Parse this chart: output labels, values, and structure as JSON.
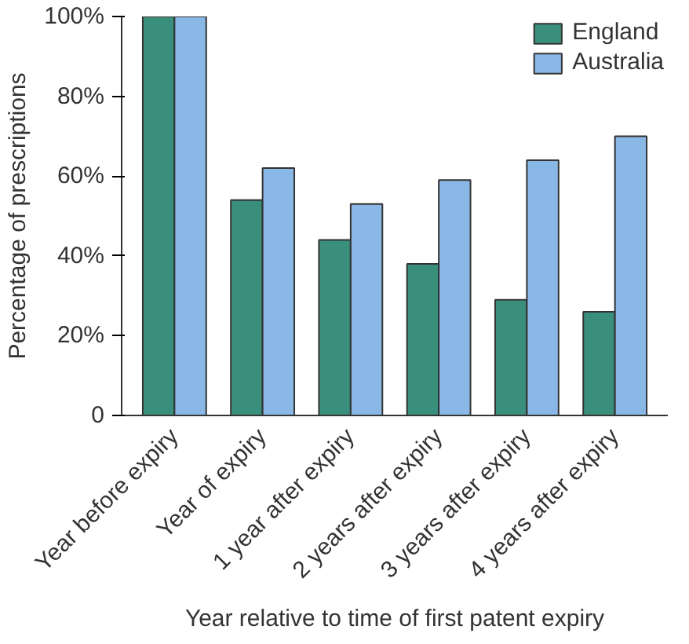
{
  "chart_data": {
    "type": "bar",
    "xlabel": "Year relative to time of first patent expiry",
    "ylabel": "Percentage of prescriptions",
    "categories": [
      "Year before expiry",
      "Year of expiry",
      "1 year after expiry",
      "2 years after expiry",
      "3 years after expiry",
      "4 years after expiry"
    ],
    "series": [
      {
        "name": "England",
        "color": "#3a8f7c",
        "values": [
          100,
          54,
          44,
          38,
          29,
          26
        ]
      },
      {
        "name": "Australia",
        "color": "#8ab8e6",
        "values": [
          100,
          62,
          53,
          59,
          64,
          70
        ]
      }
    ],
    "ylim": [
      0,
      100
    ],
    "yticks": [
      {
        "value": 0,
        "label": "0"
      },
      {
        "value": 20,
        "label": "20%"
      },
      {
        "value": 40,
        "label": "40%"
      },
      {
        "value": 60,
        "label": "60%"
      },
      {
        "value": 80,
        "label": "80%"
      },
      {
        "value": 100,
        "label": "100%"
      }
    ],
    "grid": false,
    "legend": "top right"
  }
}
